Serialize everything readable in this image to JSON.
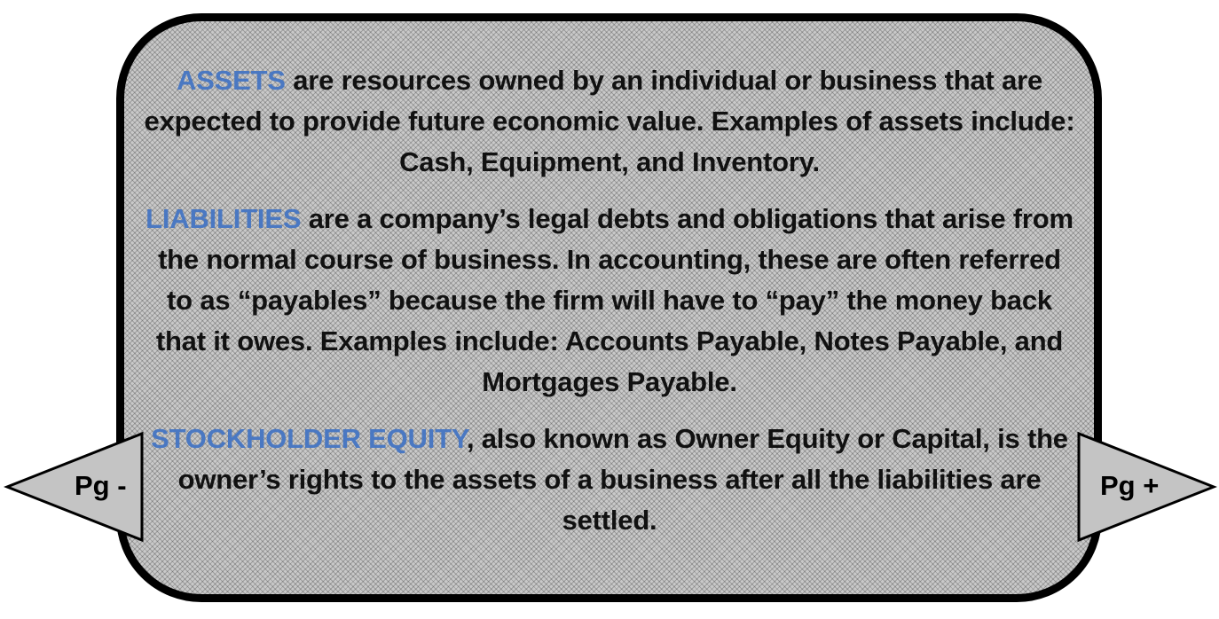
{
  "panel": {
    "paragraphs": [
      {
        "term": "ASSETS",
        "text": " are resources owned by an individual or business that are expected to provide future economic value. Examples of assets include: Cash, Equipment, and Inventory."
      },
      {
        "term": "LIABILITIES",
        "text": " are a company’s legal debts and obligations that arise from the normal course of business. In accounting, these are often referred to as “payables” because the firm will have to “pay” the money back that it owes. Examples include: Accounts Payable, Notes Payable, and Mortgages Payable."
      },
      {
        "term": "STOCKHOLDER EQUITY",
        "text": ", also known as Owner Equity or Capital, is the owner’s rights to the assets of a business after all the liabilities are settled."
      }
    ]
  },
  "navigation": {
    "prev_label": "Pg -",
    "next_label": "Pg +",
    "prev_icon": "left-arrow-icon",
    "next_icon": "right-arrow-icon"
  },
  "colors": {
    "term": "#4a78c2",
    "panel_fill": "#c9c9c9",
    "border": "#000000",
    "arrow_fill": "#c4c4c4"
  }
}
